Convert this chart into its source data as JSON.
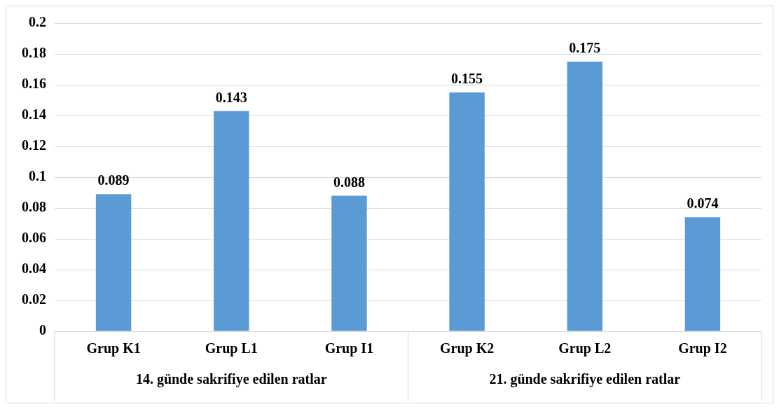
{
  "chart_data": {
    "type": "bar",
    "categories": [
      "Grup K1",
      "Grup L1",
      "Grup I1",
      "Grup K2",
      "Grup L2",
      "Grup I2"
    ],
    "values": [
      0.089,
      0.143,
      0.088,
      0.155,
      0.175,
      0.074
    ],
    "color": "#5b9bd5",
    "ylim": [
      0,
      0.2
    ],
    "yticks": [
      0,
      0.02,
      0.04,
      0.06,
      0.08,
      0.1,
      0.12,
      0.14,
      0.16,
      0.18,
      0.2
    ],
    "grid": "y",
    "data_labels": true,
    "legend": false,
    "annotations": [
      "14. günde sakrifiye edilen ratlar",
      "21. günde sakrifiye edilen ratlar"
    ]
  }
}
